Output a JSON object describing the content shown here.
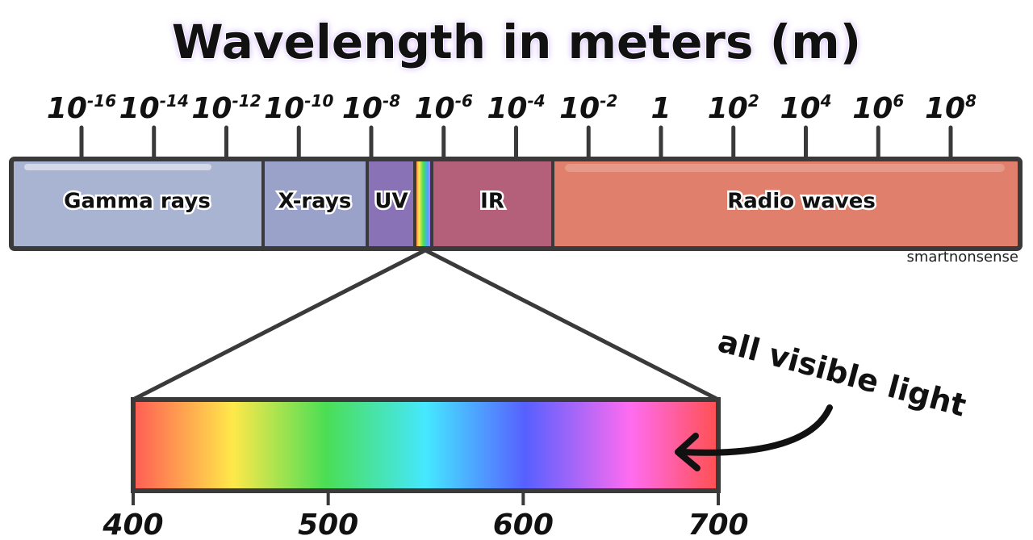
{
  "title": "Wavelength in meters (m)",
  "scale_ticks": [
    {
      "base": "10",
      "exponent": "-16"
    },
    {
      "base": "10",
      "exponent": "-14"
    },
    {
      "base": "10",
      "exponent": "-12"
    },
    {
      "base": "10",
      "exponent": "-10"
    },
    {
      "base": "10",
      "exponent": "-8"
    },
    {
      "base": "10",
      "exponent": "-6"
    },
    {
      "base": "10",
      "exponent": "-4"
    },
    {
      "base": "10",
      "exponent": "-2"
    },
    {
      "base": "1"
    },
    {
      "base": "10",
      "exponent": "2"
    },
    {
      "base": "10",
      "exponent": "4"
    },
    {
      "base": "10",
      "exponent": "6"
    },
    {
      "base": "10",
      "exponent": "8"
    }
  ],
  "bands": [
    "Gamma rays",
    "X-rays",
    "UV",
    "IR",
    "Radio waves"
  ],
  "watermark": "smartnonsense",
  "callout": "all visible light",
  "visible_axis": {
    "ticks": [
      400,
      500,
      600,
      700
    ]
  }
}
